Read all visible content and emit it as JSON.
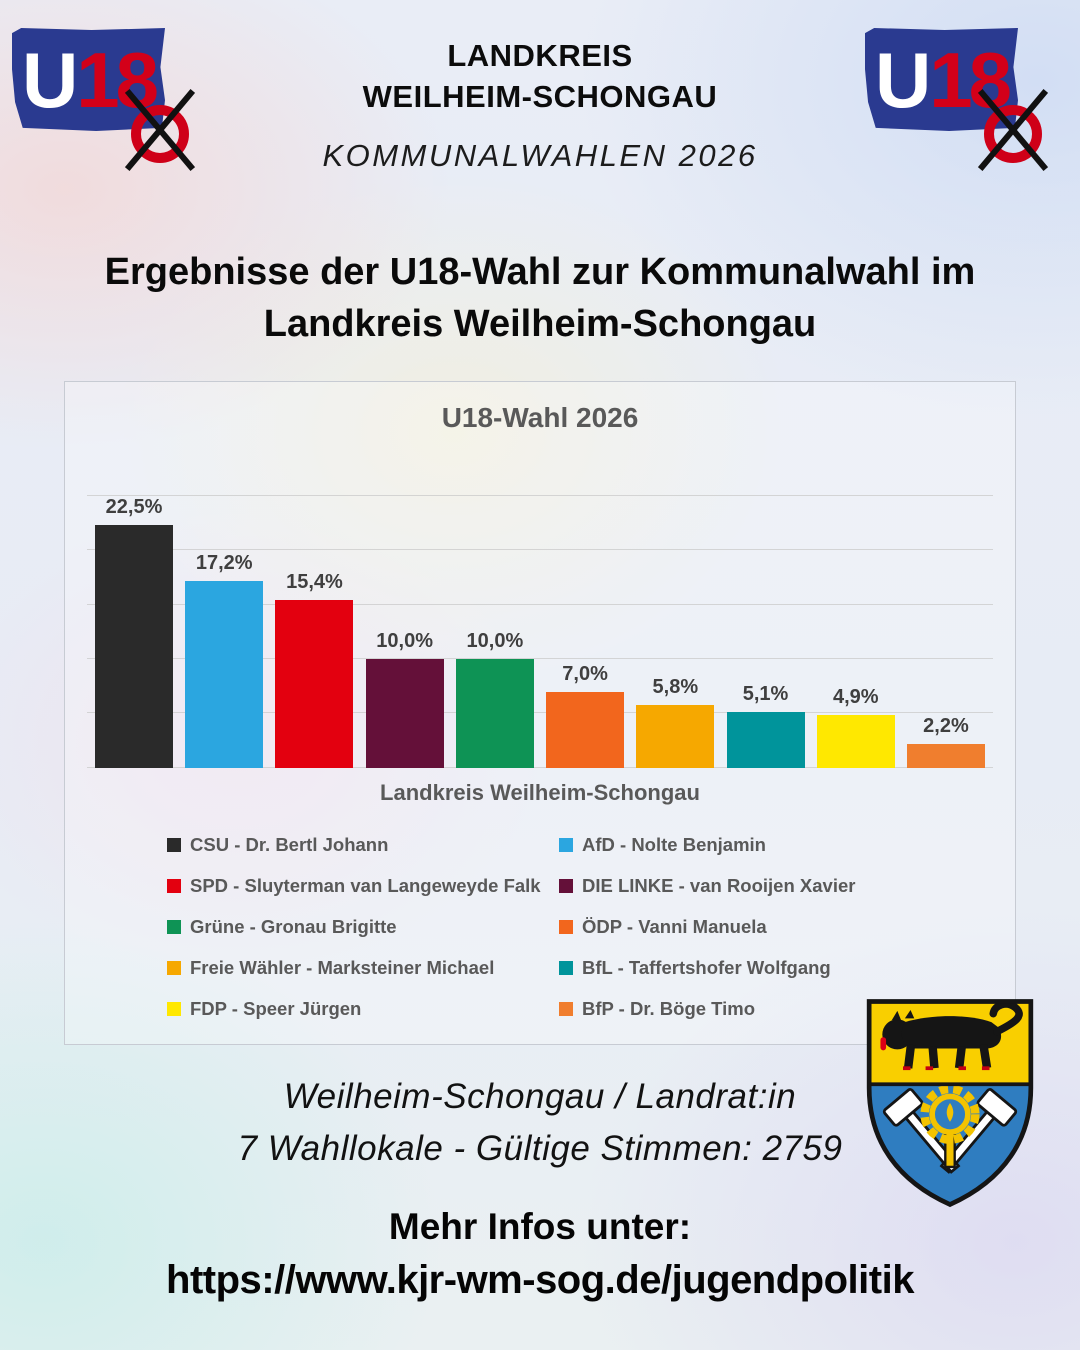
{
  "brand": {
    "u18_blue": "#2a3a90",
    "u18_red": "#d30019",
    "crest_gold": "#f9cf00",
    "crest_blue": "#2f7dc0"
  },
  "header": {
    "logo_u": "U",
    "logo_18": "18",
    "title_line1": "LANDKREIS",
    "title_line2": "WEILHEIM-SCHONGAU",
    "subtitle": "KOMMUNALWAHLEN 2026"
  },
  "heading": "Ergebnisse der U18-Wahl zur Kommunalwahl im Landkreis Weilheim-Schongau",
  "chart_data": {
    "type": "bar",
    "title": "U18-Wahl 2026",
    "xlabel": "Landkreis Weilheim-Schongau",
    "ylabel": "",
    "ylim": [
      0,
      25
    ],
    "gridline_step": 5,
    "grid": true,
    "y_axis_labels_visible": false,
    "legend_position": "bottom-two-columns",
    "value_label_format": "comma-decimal percent",
    "bars": [
      {
        "party": "CSU",
        "candidate": "Dr. Bertl Johann",
        "value": 22.5,
        "label": "22,5%",
        "color": "#2a2a2a"
      },
      {
        "party": "AfD",
        "candidate": "Nolte Benjamin",
        "value": 17.2,
        "label": "17,2%",
        "color": "#2ba6e0"
      },
      {
        "party": "SPD",
        "candidate": "Sluyterman van Langeweyde Falk",
        "value": 15.4,
        "label": "15,4%",
        "color": "#e3000f"
      },
      {
        "party": "DIE LINKE",
        "candidate": "van Rooijen Xavier",
        "value": 10.0,
        "label": "10,0%",
        "color": "#641039"
      },
      {
        "party": "Grüne",
        "candidate": "Gronau Brigitte",
        "value": 10.0,
        "label": "10,0%",
        "color": "#0e9355"
      },
      {
        "party": "ÖDP",
        "candidate": "Vanni Manuela",
        "value": 7.0,
        "label": "7,0%",
        "color": "#f2661d"
      },
      {
        "party": "Freie Wähler",
        "candidate": "Marksteiner Michael",
        "value": 5.8,
        "label": "5,8%",
        "color": "#f6a800"
      },
      {
        "party": "BfL",
        "candidate": "Taffertshofer Wolfgang",
        "value": 5.1,
        "label": "5,1%",
        "color": "#00949b"
      },
      {
        "party": "FDP",
        "candidate": "Speer Jürgen",
        "value": 4.9,
        "label": "4,9%",
        "color": "#ffe800"
      },
      {
        "party": "BfP",
        "candidate": "Dr. Böge Timo",
        "value": 2.2,
        "label": "2,2%",
        "color": "#f07e2e"
      }
    ],
    "legend_separator": " - "
  },
  "footer": {
    "context_line1": "Weilheim-Schongau / Landrat:in",
    "context_line2": "7 Wahllokale - Gültige Stimmen: 2759",
    "info_label": "Mehr Infos unter:",
    "info_url": "https://www.kjr-wm-sog.de/jugendpolitik"
  }
}
